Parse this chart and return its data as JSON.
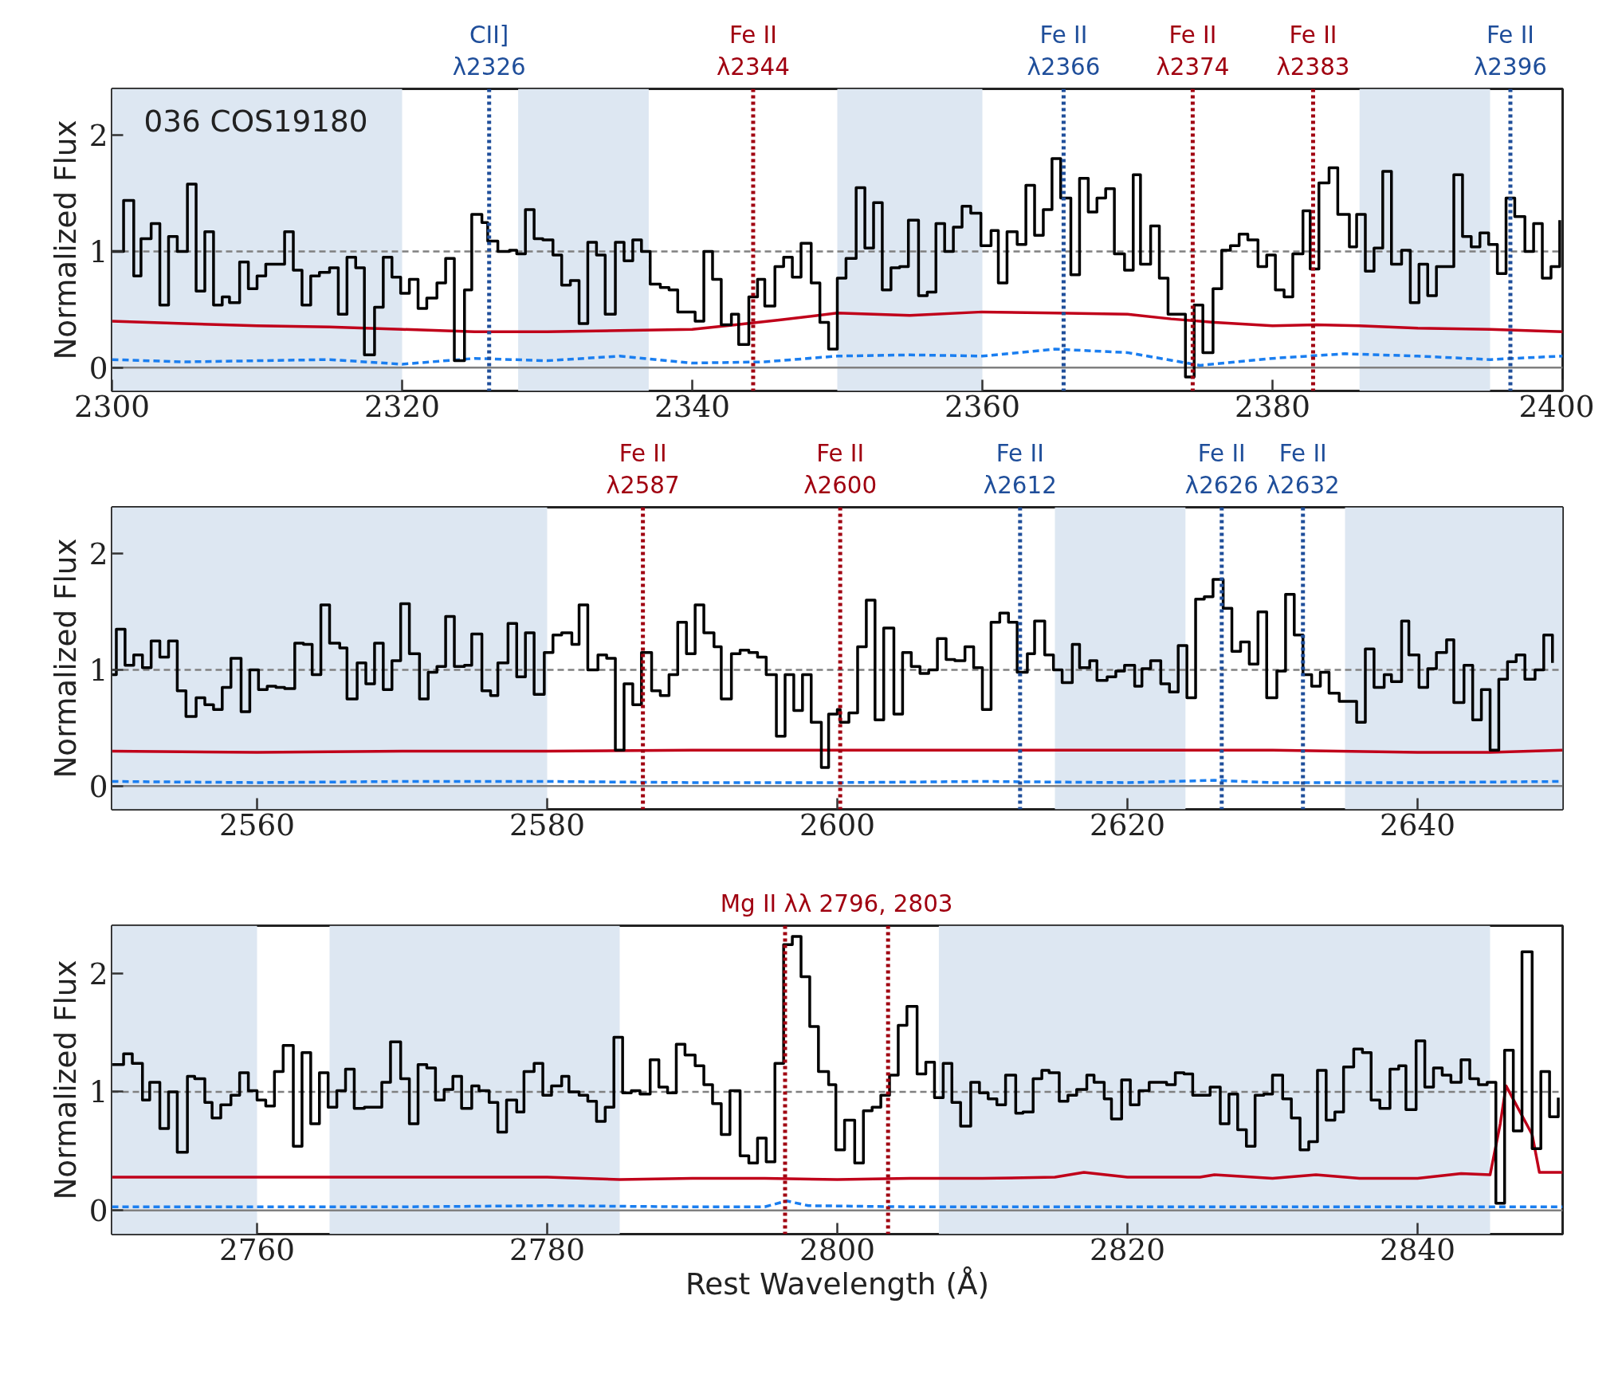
{
  "chart_data": [
    {
      "type": "step",
      "xlim": [
        2300,
        2400
      ],
      "ylim": [
        -0.2,
        2.4
      ],
      "xticks": [
        2300,
        2320,
        2340,
        2360,
        2380,
        2400
      ],
      "yticks": [
        0,
        1,
        2
      ],
      "ylabel": "Normalized Flux",
      "annotations": [
        "036 COS19180"
      ],
      "bands": [
        {
          "axis": "x",
          "from": 2300,
          "to": 2320,
          "color": "#dde7f2"
        },
        {
          "axis": "x",
          "from": 2328,
          "to": 2337,
          "color": "#dde7f2"
        },
        {
          "axis": "x",
          "from": 2350,
          "to": 2360,
          "color": "#dde7f2"
        },
        {
          "axis": "x",
          "from": 2386,
          "to": 2395,
          "color": "#dde7f2"
        }
      ],
      "ref_lines": [
        {
          "axis": "y",
          "value": 1,
          "color": "#808080",
          "line_style": "dashed"
        },
        {
          "axis": "y",
          "value": 0,
          "color": "#808080",
          "line_style": "solid"
        },
        {
          "axis": "x",
          "value": 2326.0,
          "label": "CII]\nλ2326",
          "color": "#1f4e9a",
          "line_style": "dotted"
        },
        {
          "axis": "x",
          "value": 2344.2,
          "label": "Fe II\nλ2344",
          "color": "#a00010",
          "line_style": "dotted"
        },
        {
          "axis": "x",
          "value": 2365.6,
          "label": "Fe II\nλ2366",
          "color": "#1f4e9a",
          "line_style": "dotted"
        },
        {
          "axis": "x",
          "value": 2374.5,
          "label": "Fe II\nλ2374",
          "color": "#a00010",
          "line_style": "dotted"
        },
        {
          "axis": "x",
          "value": 2382.8,
          "label": "Fe II\nλ2383",
          "color": "#a00010",
          "line_style": "dotted"
        },
        {
          "axis": "x",
          "value": 2396.4,
          "label": "Fe II\nλ2396",
          "color": "#1f4e9a",
          "line_style": "dotted"
        }
      ],
      "series": [
        {
          "type": "line",
          "color": "#c0001a",
          "line_style": "solid",
          "x": [
            2300,
            2305,
            2310,
            2315,
            2320,
            2325,
            2330,
            2335,
            2340,
            2343,
            2346,
            2350,
            2355,
            2360,
            2365,
            2370,
            2373,
            2376,
            2380,
            2383,
            2386,
            2390,
            2395,
            2400
          ],
          "values": [
            0.4,
            0.38,
            0.36,
            0.35,
            0.33,
            0.31,
            0.31,
            0.32,
            0.33,
            0.37,
            0.41,
            0.47,
            0.45,
            0.48,
            0.47,
            0.46,
            0.42,
            0.39,
            0.36,
            0.37,
            0.36,
            0.34,
            0.33,
            0.31
          ]
        },
        {
          "type": "line",
          "color": "#1a7ef0",
          "line_style": "dashed",
          "x": [
            2300,
            2305,
            2310,
            2315,
            2320,
            2325,
            2330,
            2335,
            2340,
            2345,
            2350,
            2355,
            2360,
            2365,
            2370,
            2375,
            2380,
            2385,
            2390,
            2395,
            2400
          ],
          "values": [
            0.07,
            0.05,
            0.06,
            0.07,
            0.03,
            0.08,
            0.06,
            0.1,
            0.04,
            0.05,
            0.1,
            0.11,
            0.1,
            0.16,
            0.13,
            0.02,
            0.08,
            0.12,
            0.1,
            0.07,
            0.1
          ]
        },
        {
          "color": "#000000",
          "line_style": "solid",
          "x": [
            2300.0,
            2300.8,
            2301.5,
            2302.0,
            2302.7,
            2303.3,
            2303.9,
            2304.5,
            2305.2,
            2305.8,
            2306.4,
            2307.0,
            2307.6,
            2308.1,
            2308.8,
            2309.4,
            2310.0,
            2310.6,
            2311.9,
            2312.5,
            2313.1,
            2313.7,
            2314.3,
            2315.0,
            2315.6,
            2316.2,
            2316.8,
            2317.4,
            2318.1,
            2318.7,
            2319.3,
            2319.9,
            2320.5,
            2321.1,
            2321.7,
            2322.4,
            2323.0,
            2323.6,
            2324.3,
            2324.8,
            2325.5,
            2325.9,
            2326.6,
            2327.4,
            2327.9,
            2328.5,
            2329.1,
            2329.7,
            2330.4,
            2331.0,
            2331.6,
            2332.2,
            2332.8,
            2333.4,
            2334.0,
            2334.7,
            2335.3,
            2335.9,
            2336.5,
            2337.1,
            2337.8,
            2338.4,
            2339.0,
            2340.2,
            2340.8,
            2341.4,
            2342.0,
            2342.7,
            2343.2,
            2343.9,
            2344.5,
            2345.0,
            2345.7,
            2346.3,
            2346.9,
            2347.5,
            2348.2,
            2348.8,
            2349.4,
            2350.0,
            2350.6,
            2351.3,
            2351.9,
            2352.5,
            2353.1,
            2353.7,
            2354.3,
            2354.9,
            2355.6,
            2356.2,
            2356.8,
            2357.4,
            2358.0,
            2358.6,
            2359.2,
            2359.9,
            2360.6,
            2361.1,
            2361.7,
            2362.4,
            2363.0,
            2363.6,
            2364.2,
            2364.8,
            2365.4,
            2366.1,
            2366.7,
            2367.3,
            2367.9,
            2368.5,
            2369.1,
            2369.8,
            2370.4,
            2370.9,
            2371.6,
            2372.2,
            2372.8,
            2374.0,
            2374.6,
            2375.2,
            2375.9,
            2376.5,
            2377.1,
            2377.7,
            2378.3,
            2379.0,
            2379.6,
            2380.2,
            2380.8,
            2381.4,
            2382.1,
            2382.6,
            2383.2,
            2383.9,
            2384.5,
            2385.3,
            2385.8,
            2386.4,
            2387.0,
            2387.6,
            2388.2,
            2388.9,
            2389.5,
            2390.1,
            2390.7,
            2391.3,
            2392.5,
            2393.1,
            2393.7,
            2394.3,
            2394.9,
            2395.5,
            2396.1,
            2396.7,
            2397.4,
            2398.0,
            2398.6,
            2399.2,
            2399.8
          ],
          "values": [
            1.0,
            1.44,
            0.79,
            1.11,
            1.24,
            0.54,
            1.13,
            1.0,
            1.58,
            0.66,
            1.17,
            0.54,
            0.61,
            0.56,
            0.91,
            0.68,
            0.79,
            0.89,
            1.17,
            0.84,
            0.54,
            0.79,
            0.82,
            0.86,
            0.46,
            0.95,
            0.86,
            0.11,
            0.52,
            0.95,
            0.78,
            0.64,
            0.76,
            0.51,
            0.6,
            0.73,
            0.94,
            0.06,
            0.67,
            1.32,
            1.25,
            1.09,
            1.0,
            1.01,
            0.98,
            1.36,
            1.11,
            1.1,
            0.97,
            0.71,
            0.75,
            0.38,
            1.08,
            0.97,
            0.46,
            1.08,
            0.92,
            1.1,
            1.0,
            0.72,
            0.69,
            0.67,
            0.48,
            0.4,
            1.0,
            0.76,
            0.37,
            0.46,
            0.2,
            0.61,
            0.76,
            0.53,
            0.87,
            0.95,
            0.78,
            1.07,
            0.73,
            0.39,
            0.16,
            0.77,
            0.94,
            1.55,
            1.03,
            1.42,
            0.67,
            0.86,
            0.87,
            1.27,
            0.62,
            0.65,
            1.24,
            1.0,
            1.21,
            1.39,
            1.33,
            1.05,
            1.18,
            0.73,
            1.17,
            1.06,
            1.57,
            1.14,
            1.36,
            1.8,
            1.46,
            0.8,
            1.63,
            1.34,
            1.46,
            1.54,
            0.98,
            0.84,
            1.66,
            0.89,
            1.22,
            0.77,
            0.46,
            -0.08,
            0.54,
            0.13,
            0.68,
            1.01,
            1.05,
            1.15,
            1.1,
            0.87,
            0.97,
            0.67,
            0.61,
            0.98,
            1.35,
            0.85,
            1.59,
            1.72,
            1.32,
            1.04,
            1.32,
            0.83,
            1.03,
            1.69,
            0.89,
            1.01,
            0.56,
            0.89,
            0.62,
            0.87,
            1.66,
            1.13,
            1.04,
            1.16,
            1.06,
            0.81,
            1.46,
            1.3,
            1.0,
            1.24,
            0.77,
            0.87,
            1.27
          ]
        }
      ]
    },
    {
      "type": "step",
      "xlim": [
        2550,
        2650
      ],
      "ylim": [
        -0.2,
        2.4
      ],
      "xticks": [
        2560,
        2580,
        2600,
        2620,
        2640
      ],
      "yticks": [
        0,
        1,
        2
      ],
      "ylabel": "Normalized Flux",
      "bands": [
        {
          "axis": "x",
          "from": 2550,
          "to": 2580,
          "color": "#dde7f2"
        },
        {
          "axis": "x",
          "from": 2615,
          "to": 2624,
          "color": "#dde7f2"
        },
        {
          "axis": "x",
          "from": 2635,
          "to": 2650,
          "color": "#dde7f2"
        }
      ],
      "ref_lines": [
        {
          "axis": "y",
          "value": 1,
          "color": "#808080",
          "line_style": "dashed"
        },
        {
          "axis": "y",
          "value": 0,
          "color": "#808080",
          "line_style": "solid"
        },
        {
          "axis": "x",
          "value": 2586.6,
          "label": "Fe II\nλ2587",
          "color": "#a00010",
          "line_style": "dotted"
        },
        {
          "axis": "x",
          "value": 2600.2,
          "label": "Fe II\nλ2600",
          "color": "#a00010",
          "line_style": "dotted"
        },
        {
          "axis": "x",
          "value": 2612.6,
          "label": "Fe II\nλ2612",
          "color": "#1f4e9a",
          "line_style": "dotted"
        },
        {
          "axis": "x",
          "value": 2626.5,
          "label": "Fe II\nλ2626",
          "color": "#1f4e9a",
          "line_style": "dotted"
        },
        {
          "axis": "x",
          "value": 2632.1,
          "label": "Fe II\nλ2632",
          "color": "#1f4e9a",
          "line_style": "dotted"
        }
      ],
      "series": [
        {
          "type": "line",
          "color": "#c0001a",
          "line_style": "solid",
          "x": [
            2550,
            2560,
            2570,
            2580,
            2590,
            2600,
            2610,
            2620,
            2630,
            2640,
            2645,
            2650
          ],
          "values": [
            0.3,
            0.29,
            0.3,
            0.3,
            0.31,
            0.31,
            0.31,
            0.31,
            0.31,
            0.29,
            0.29,
            0.31
          ]
        },
        {
          "type": "line",
          "color": "#1a7ef0",
          "line_style": "dashed",
          "x": [
            2550,
            2560,
            2570,
            2580,
            2590,
            2600,
            2610,
            2620,
            2626,
            2630,
            2640,
            2650
          ],
          "values": [
            0.04,
            0.03,
            0.04,
            0.04,
            0.03,
            0.03,
            0.04,
            0.03,
            0.05,
            0.03,
            0.03,
            0.04
          ]
        },
        {
          "color": "#000000",
          "line_style": "solid",
          "x": [
            2550.0,
            2550.3,
            2550.9,
            2551.5,
            2552.1,
            2552.7,
            2553.3,
            2553.9,
            2554.5,
            2555.1,
            2555.8,
            2556.4,
            2557.0,
            2557.6,
            2558.2,
            2558.9,
            2559.5,
            2560.1,
            2560.7,
            2561.3,
            2561.9,
            2562.6,
            2563.2,
            2563.8,
            2564.4,
            2565.0,
            2565.7,
            2566.2,
            2566.9,
            2567.5,
            2568.1,
            2568.7,
            2569.3,
            2569.9,
            2570.5,
            2571.2,
            2571.8,
            2572.4,
            2573.0,
            2573.6,
            2574.3,
            2574.8,
            2575.5,
            2576.1,
            2576.6,
            2577.3,
            2577.9,
            2578.5,
            2579.1,
            2579.8,
            2580.4,
            2581.0,
            2581.7,
            2582.2,
            2582.8,
            2583.5,
            2584.1,
            2584.7,
            2585.3,
            2585.9,
            2586.5,
            2587.2,
            2587.8,
            2588.4,
            2589.0,
            2589.6,
            2590.2,
            2590.8,
            2591.5,
            2592.0,
            2592.7,
            2593.3,
            2593.9,
            2594.5,
            2595.1,
            2595.8,
            2596.4,
            2597.0,
            2597.6,
            2598.2,
            2598.9,
            2599.4,
            2600.0,
            2600.2,
            2600.8,
            2601.4,
            2602.0,
            2602.6,
            2603.2,
            2603.9,
            2604.5,
            2605.1,
            2605.7,
            2606.3,
            2606.9,
            2607.5,
            2608.1,
            2608.8,
            2609.4,
            2610.0,
            2610.6,
            2611.2,
            2611.8,
            2612.4,
            2613.1,
            2613.6,
            2614.3,
            2614.9,
            2615.5,
            2616.2,
            2616.7,
            2617.4,
            2617.9,
            2618.6,
            2619.2,
            2619.8,
            2620.5,
            2621.0,
            2621.6,
            2622.3,
            2622.9,
            2623.5,
            2624.1,
            2624.7,
            2625.3,
            2625.9,
            2626.6,
            2627.2,
            2627.8,
            2628.4,
            2629.0,
            2629.6,
            2630.3,
            2630.9,
            2631.5,
            2632.1,
            2632.7,
            2633.3,
            2633.9,
            2634.6,
            2635.8,
            2636.4,
            2637.0,
            2637.7,
            2638.2,
            2638.9,
            2639.4,
            2640.1,
            2640.7,
            2641.3,
            2642.0,
            2642.5,
            2643.2,
            2643.8,
            2644.4,
            2645.0,
            2645.6,
            2646.2,
            2646.8,
            2647.4,
            2648.1,
            2648.7,
            2649.3
          ],
          "values": [
            0.96,
            1.35,
            1.04,
            1.13,
            1.02,
            1.25,
            1.11,
            1.25,
            0.82,
            0.6,
            0.76,
            0.7,
            0.66,
            0.85,
            1.1,
            0.64,
            1.0,
            0.83,
            0.86,
            0.85,
            0.84,
            1.23,
            1.22,
            0.96,
            1.56,
            1.23,
            1.19,
            0.75,
            1.06,
            0.88,
            1.23,
            0.83,
            1.08,
            1.57,
            1.14,
            0.75,
            0.98,
            1.03,
            1.46,
            1.03,
            1.04,
            1.31,
            0.82,
            0.78,
            1.06,
            1.4,
            0.94,
            1.32,
            0.79,
            1.15,
            1.3,
            1.32,
            1.22,
            1.56,
            1.0,
            1.13,
            1.1,
            0.31,
            0.88,
            0.7,
            1.15,
            0.82,
            0.78,
            0.96,
            1.41,
            1.14,
            1.56,
            1.32,
            1.2,
            0.75,
            1.14,
            1.17,
            1.15,
            1.11,
            0.96,
            0.43,
            0.96,
            0.65,
            0.96,
            0.55,
            0.16,
            0.62,
            0.66,
            0.55,
            0.63,
            1.2,
            1.6,
            0.57,
            1.36,
            0.62,
            1.15,
            1.03,
            0.97,
            1.0,
            1.27,
            1.09,
            1.08,
            1.2,
            1.02,
            0.66,
            1.41,
            1.49,
            1.41,
            0.98,
            1.14,
            1.42,
            1.13,
            1.0,
            0.89,
            1.22,
            1.02,
            1.08,
            0.91,
            0.94,
            0.99,
            1.04,
            0.86,
            1.01,
            1.08,
            0.88,
            0.81,
            1.21,
            0.76,
            1.61,
            1.63,
            1.78,
            1.53,
            1.16,
            1.24,
            1.05,
            1.5,
            0.76,
            0.99,
            1.65,
            1.3,
            0.96,
            0.86,
            0.98,
            0.8,
            0.73,
            0.55,
            1.18,
            0.85,
            0.96,
            0.9,
            1.42,
            1.13,
            0.85,
            1.01,
            1.15,
            1.26,
            0.72,
            1.04,
            0.57,
            0.83,
            0.31,
            0.92,
            1.07,
            1.13,
            0.92,
            1.0,
            1.3,
            1.06
          ]
        }
      ]
    },
    {
      "type": "step",
      "xlim": [
        2750,
        2850
      ],
      "ylim": [
        -0.2,
        2.4
      ],
      "xticks": [
        2760,
        2780,
        2800,
        2820,
        2840
      ],
      "yticks": [
        0,
        1,
        2
      ],
      "ylabel": "Normalized Flux",
      "xlabel": "Rest Wavelength (Å)",
      "bands": [
        {
          "axis": "x",
          "from": 2750,
          "to": 2760,
          "color": "#dde7f2"
        },
        {
          "axis": "x",
          "from": 2765,
          "to": 2785,
          "color": "#dde7f2"
        },
        {
          "axis": "x",
          "from": 2807,
          "to": 2845,
          "color": "#dde7f2"
        }
      ],
      "ref_lines": [
        {
          "axis": "y",
          "value": 1,
          "color": "#808080",
          "line_style": "dashed"
        },
        {
          "axis": "y",
          "value": 0,
          "color": "#808080",
          "line_style": "solid"
        },
        {
          "axis": "x",
          "value": 2796.4,
          "label": "Mg II λλ 2796, 2803",
          "color": "#a00010",
          "line_style": "dotted"
        },
        {
          "axis": "x",
          "value": 2803.5,
          "color": "#a00010",
          "line_style": "dotted"
        }
      ],
      "series": [
        {
          "type": "line",
          "color": "#c0001a",
          "line_style": "solid",
          "x": [
            2750,
            2760,
            2770,
            2780,
            2785,
            2790,
            2795,
            2800,
            2805,
            2810,
            2815,
            2817,
            2820,
            2825,
            2826,
            2830,
            2833,
            2836,
            2840,
            2843,
            2845,
            2845.7,
            2846.1,
            2847.9,
            2848.4,
            2850
          ],
          "values": [
            0.28,
            0.28,
            0.28,
            0.28,
            0.26,
            0.27,
            0.27,
            0.26,
            0.27,
            0.27,
            0.28,
            0.32,
            0.28,
            0.28,
            0.3,
            0.27,
            0.3,
            0.27,
            0.27,
            0.31,
            0.3,
            0.73,
            1.05,
            0.64,
            0.32,
            0.32
          ]
        },
        {
          "type": "line",
          "color": "#1a7ef0",
          "line_style": "dashed",
          "x": [
            2750,
            2760,
            2770,
            2780,
            2790,
            2795,
            2796.5,
            2798,
            2805,
            2810,
            2820,
            2830,
            2840,
            2845,
            2850
          ],
          "values": [
            0.03,
            0.03,
            0.03,
            0.04,
            0.03,
            0.03,
            0.08,
            0.04,
            0.03,
            0.03,
            0.03,
            0.03,
            0.03,
            0.03,
            0.03
          ]
        },
        {
          "color": "#000000",
          "line_style": "solid",
          "x": [
            2750.0,
            2750.8,
            2751.4,
            2752.1,
            2752.6,
            2753.3,
            2753.9,
            2754.5,
            2755.2,
            2755.7,
            2756.4,
            2756.9,
            2757.5,
            2758.2,
            2758.8,
            2759.4,
            2760.0,
            2760.6,
            2761.2,
            2761.8,
            2762.5,
            2763.1,
            2763.7,
            2764.3,
            2764.9,
            2765.5,
            2766.1,
            2766.7,
            2767.4,
            2768.6,
            2769.2,
            2769.9,
            2770.5,
            2771.1,
            2771.7,
            2772.3,
            2772.9,
            2773.5,
            2774.1,
            2774.8,
            2775.3,
            2776.0,
            2776.6,
            2777.2,
            2777.9,
            2778.4,
            2779.1,
            2779.7,
            2780.3,
            2781.0,
            2781.5,
            2782.2,
            2782.8,
            2783.4,
            2784.0,
            2784.6,
            2785.2,
            2785.8,
            2786.4,
            2787.1,
            2787.7,
            2788.3,
            2788.9,
            2789.5,
            2790.2,
            2790.8,
            2791.4,
            2792.0,
            2792.6,
            2793.3,
            2793.9,
            2794.5,
            2795.1,
            2795.7,
            2796.3,
            2796.9,
            2797.5,
            2798.1,
            2798.7,
            2799.4,
            2799.9,
            2800.5,
            2801.2,
            2801.8,
            2802.4,
            2803.0,
            2803.6,
            2804.2,
            2804.8,
            2805.5,
            2806.1,
            2806.7,
            2807.3,
            2807.9,
            2808.5,
            2809.2,
            2809.8,
            2810.4,
            2811.0,
            2811.6,
            2812.3,
            2812.8,
            2813.5,
            2814.1,
            2814.6,
            2815.3,
            2815.9,
            2816.5,
            2817.2,
            2817.7,
            2818.4,
            2818.9,
            2819.6,
            2820.2,
            2820.8,
            2821.5,
            2822.0,
            2822.7,
            2823.3,
            2823.9,
            2824.5,
            2825.1,
            2825.7,
            2826.4,
            2827.0,
            2827.6,
            2828.2,
            2828.8,
            2829.4,
            2830.0,
            2830.7,
            2831.3,
            2831.9,
            2832.5,
            2833.1,
            2833.7,
            2834.3,
            2834.9,
            2835.6,
            2836.2,
            2836.8,
            2837.4,
            2838.1,
            2838.7,
            2839.2,
            2839.9,
            2840.5,
            2841.1,
            2841.7,
            2842.3,
            2843.0,
            2843.6,
            2844.2,
            2844.8,
            2845.4,
            2846.0,
            2846.6,
            2847.2,
            2847.9,
            2848.5,
            2849.1,
            2849.7
          ],
          "values": [
            1.23,
            1.32,
            1.24,
            0.93,
            1.08,
            0.69,
            1.0,
            0.49,
            1.13,
            1.11,
            0.91,
            0.78,
            0.89,
            0.97,
            1.16,
            1.01,
            0.93,
            0.88,
            1.17,
            1.39,
            0.54,
            1.33,
            0.73,
            1.16,
            0.87,
            1.01,
            1.19,
            0.86,
            0.87,
            1.08,
            1.42,
            1.11,
            0.73,
            1.23,
            1.2,
            0.93,
            1.02,
            1.13,
            0.86,
            1.05,
            1.01,
            0.91,
            0.66,
            0.93,
            0.83,
            1.17,
            1.24,
            0.97,
            1.05,
            1.13,
            1.0,
            0.97,
            0.92,
            0.75,
            0.87,
            1.46,
            0.99,
            1.01,
            0.98,
            1.27,
            1.04,
            0.99,
            1.4,
            1.31,
            1.22,
            1.06,
            0.9,
            0.64,
            1.01,
            0.46,
            0.4,
            0.61,
            0.41,
            1.24,
            2.24,
            2.31,
            1.97,
            1.55,
            1.17,
            1.06,
            0.51,
            0.76,
            0.4,
            0.84,
            0.87,
            0.97,
            1.14,
            1.56,
            1.72,
            1.15,
            1.25,
            0.95,
            1.24,
            0.91,
            0.71,
            1.08,
            0.99,
            0.94,
            0.89,
            1.14,
            0.82,
            0.83,
            1.11,
            1.18,
            1.16,
            0.92,
            0.97,
            1.02,
            1.14,
            1.08,
            0.94,
            0.77,
            1.1,
            0.89,
            1.01,
            1.08,
            1.08,
            1.06,
            1.16,
            1.15,
            0.97,
            0.97,
            1.04,
            0.73,
            0.98,
            0.68,
            0.54,
            0.97,
            0.98,
            1.14,
            0.94,
            0.78,
            0.51,
            0.58,
            1.18,
            0.76,
            0.83,
            1.21,
            1.36,
            1.33,
            0.93,
            0.86,
            1.19,
            1.22,
            0.85,
            1.43,
            1.04,
            1.2,
            1.14,
            1.08,
            1.27,
            1.11,
            1.06,
            1.08,
            0.06,
            1.35,
            0.67,
            2.18,
            0.52,
            1.17,
            0.79,
            0.95
          ]
        }
      ]
    }
  ]
}
